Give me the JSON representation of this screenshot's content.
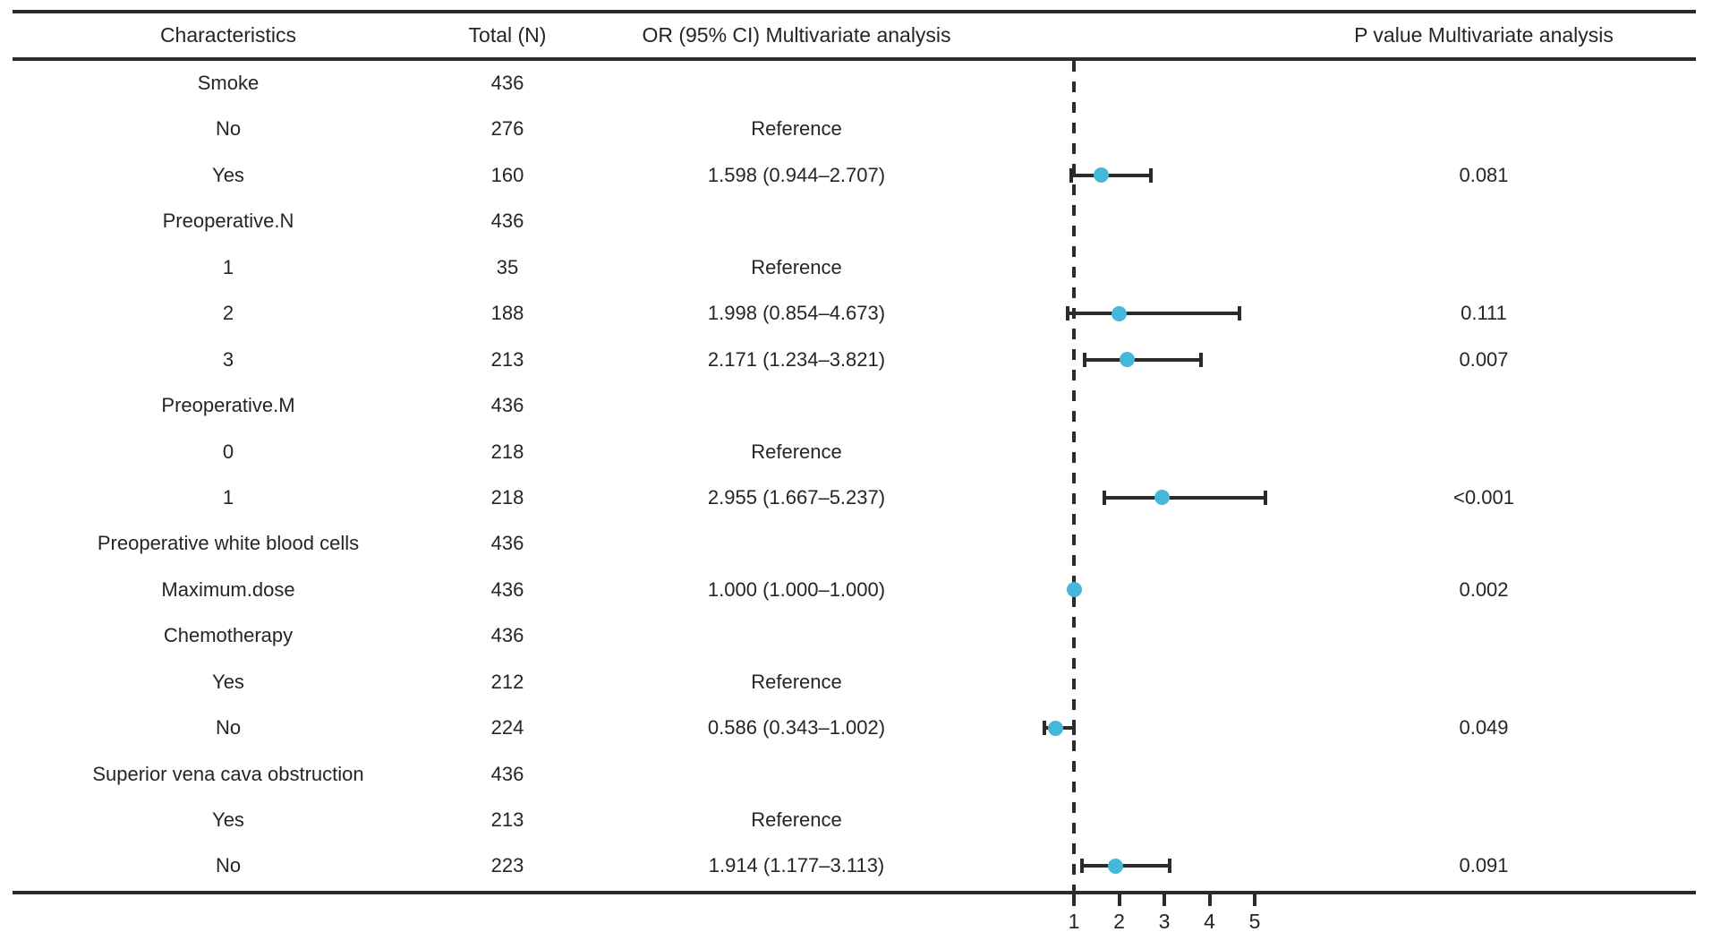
{
  "figure": {
    "columns": {
      "characteristics": "Characteristics",
      "total": "Total (N)",
      "or": "OR (95% CI) Multivariate analysis",
      "p": "P value Multivariate analysis"
    },
    "rows": [
      {
        "label": "Smoke",
        "total": "436",
        "or_ci": "",
        "p": ""
      },
      {
        "label": "No",
        "total": "276",
        "or_ci": "Reference",
        "p": ""
      },
      {
        "label": "Yes",
        "total": "160",
        "or_ci": "1.598 (0.944–2.707)",
        "p": "0.081",
        "est": 1.598,
        "lo": 0.944,
        "hi": 2.707
      },
      {
        "label": "Preoperative.N",
        "total": "436",
        "or_ci": "",
        "p": ""
      },
      {
        "label": "1",
        "total": "35",
        "or_ci": "Reference",
        "p": ""
      },
      {
        "label": "2",
        "total": "188",
        "or_ci": "1.998 (0.854–4.673)",
        "p": "0.111",
        "est": 1.998,
        "lo": 0.854,
        "hi": 4.673
      },
      {
        "label": "3",
        "total": "213",
        "or_ci": "2.171 (1.234–3.821)",
        "p": "0.007",
        "est": 2.171,
        "lo": 1.234,
        "hi": 3.821
      },
      {
        "label": "Preoperative.M",
        "total": "436",
        "or_ci": "",
        "p": ""
      },
      {
        "label": "0",
        "total": "218",
        "or_ci": "Reference",
        "p": ""
      },
      {
        "label": "1",
        "total": "218",
        "or_ci": "2.955 (1.667–5.237)",
        "p": "<0.001",
        "est": 2.955,
        "lo": 1.667,
        "hi": 5.237
      },
      {
        "label": "Preoperative white blood cells",
        "total": "436",
        "or_ci": "",
        "p": ""
      },
      {
        "label": "Maximum.dose",
        "total": "436",
        "or_ci": "1.000 (1.000–1.000)",
        "p": "0.002",
        "est": 1.0,
        "lo": 1.0,
        "hi": 1.0
      },
      {
        "label": "Chemotherapy",
        "total": "436",
        "or_ci": "",
        "p": ""
      },
      {
        "label": "Yes",
        "total": "212",
        "or_ci": "Reference",
        "p": ""
      },
      {
        "label": "No",
        "total": "224",
        "or_ci": "0.586 (0.343–1.002)",
        "p": "0.049",
        "est": 0.586,
        "lo": 0.343,
        "hi": 1.002
      },
      {
        "label": "Superior vena cava obstruction",
        "total": "436",
        "or_ci": "",
        "p": ""
      },
      {
        "label": "Yes",
        "total": "213",
        "or_ci": "Reference",
        "p": ""
      },
      {
        "label": "No",
        "total": "223",
        "or_ci": "1.914 (1.177–3.113)",
        "p": "0.091",
        "est": 1.914,
        "lo": 1.177,
        "hi": 3.113
      }
    ],
    "axis": {
      "tick_labels": [
        "1",
        "2",
        "3",
        "4",
        "5"
      ],
      "reference_value": 1
    },
    "colors": {
      "marker": "#45b7d9",
      "line": "#2b2b2b",
      "text": "#282425"
    }
  },
  "chart_data": {
    "type": "scatter",
    "subtype": "forest-plot",
    "title": "",
    "xlabel": "OR (95% CI)",
    "ylabel": "",
    "x_ticks": [
      1,
      2,
      3,
      4,
      5
    ],
    "reference_line_x": 1,
    "x_scale": "linear",
    "grid": false,
    "legend": "none",
    "columns": [
      "Characteristics",
      "Total (N)",
      "OR (95% CI) Multivariate analysis",
      "P value Multivariate analysis"
    ],
    "points": [
      {
        "label": "Smoke: Yes",
        "n": 160,
        "or": 1.598,
        "ci_low": 0.944,
        "ci_high": 2.707,
        "p": "0.081"
      },
      {
        "label": "Preoperative.N: 2",
        "n": 188,
        "or": 1.998,
        "ci_low": 0.854,
        "ci_high": 4.673,
        "p": "0.111"
      },
      {
        "label": "Preoperative.N: 3",
        "n": 213,
        "or": 2.171,
        "ci_low": 1.234,
        "ci_high": 3.821,
        "p": "0.007"
      },
      {
        "label": "Preoperative.M: 1",
        "n": 218,
        "or": 2.955,
        "ci_low": 1.667,
        "ci_high": 5.237,
        "p": "<0.001"
      },
      {
        "label": "Maximum.dose",
        "n": 436,
        "or": 1.0,
        "ci_low": 1.0,
        "ci_high": 1.0,
        "p": "0.002"
      },
      {
        "label": "Chemotherapy: No",
        "n": 224,
        "or": 0.586,
        "ci_low": 0.343,
        "ci_high": 1.002,
        "p": "0.049"
      },
      {
        "label": "Superior vena cava obstruction: No",
        "n": 223,
        "or": 1.914,
        "ci_low": 1.177,
        "ci_high": 3.113,
        "p": "0.091"
      }
    ],
    "reference_rows": [
      "Smoke: No",
      "Preoperative.N: 1",
      "Preoperative.M: 0",
      "Chemotherapy: Yes",
      "Superior vena cava obstruction: Yes"
    ]
  }
}
